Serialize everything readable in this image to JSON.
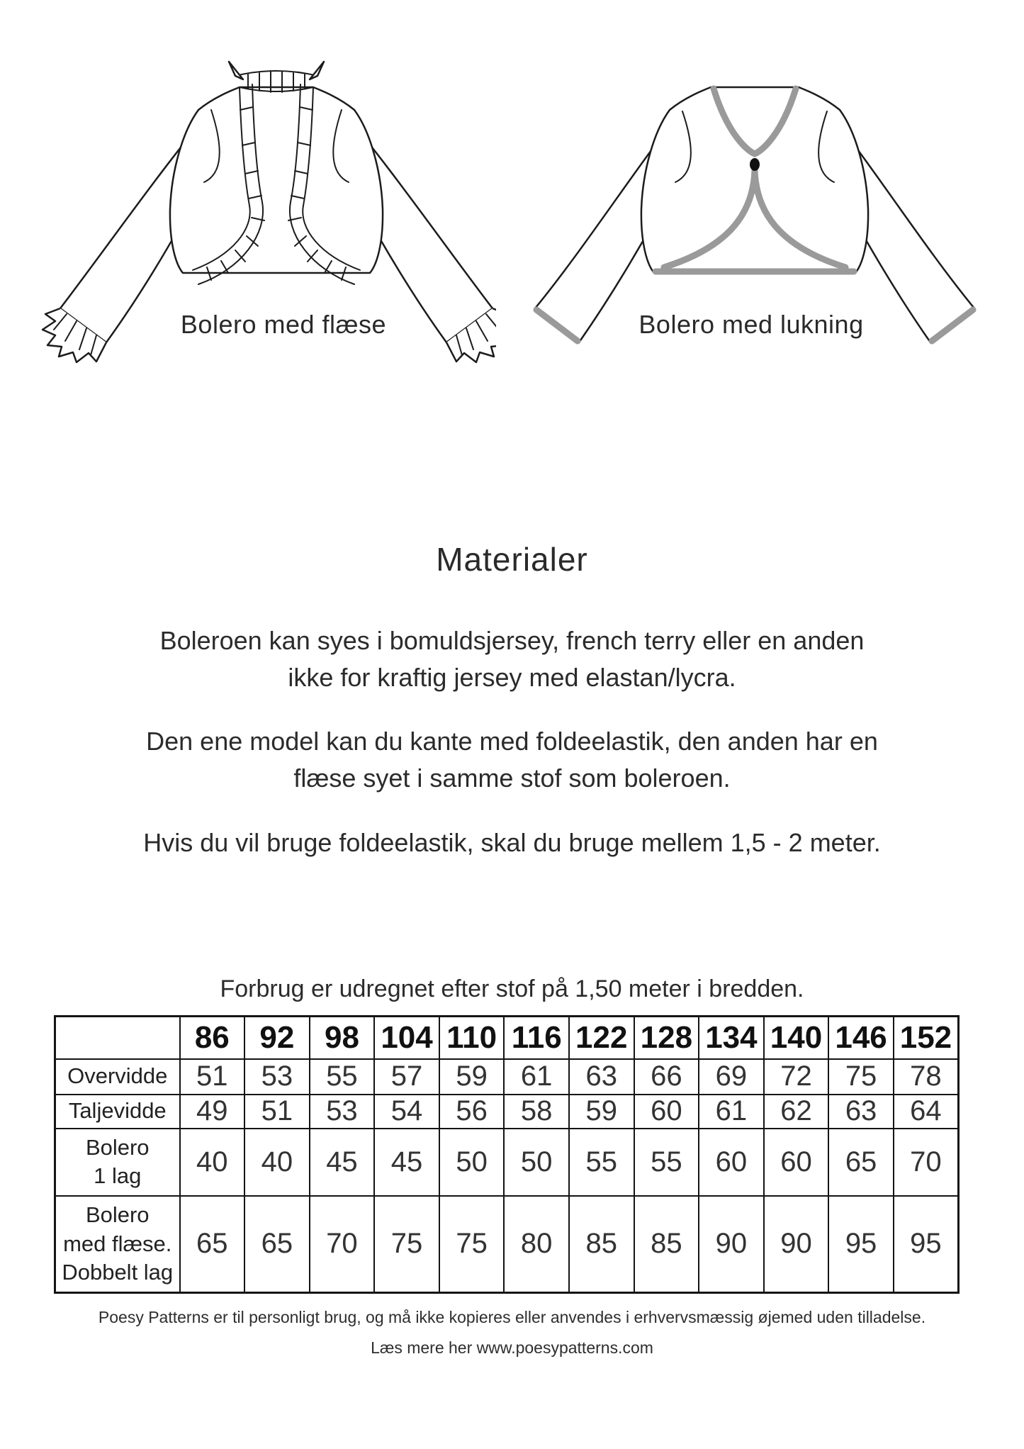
{
  "figures": {
    "left_label": "Bolero med flæse",
    "right_label": "Bolero med lukning"
  },
  "materials": {
    "heading": "Materialer",
    "paragraphs": [
      {
        "lines": [
          "Boleroen kan syes i bomuldsjersey, french terry eller en anden",
          "ikke for kraftig jersey med elastan/lycra."
        ]
      },
      {
        "lines": [
          "Den ene model kan du kante med foldeelastik, den anden har en",
          "flæse syet i samme stof som boleroen."
        ]
      },
      {
        "lines": [
          "Hvis du vil bruge foldeelastik, skal du bruge mellem 1,5 - 2 meter."
        ]
      }
    ]
  },
  "table": {
    "caption": "Forbrug er udregnet efter stof på 1,50 meter i bredden.",
    "sizes": [
      "86",
      "92",
      "98",
      "104",
      "110",
      "116",
      "122",
      "128",
      "134",
      "140",
      "146",
      "152"
    ],
    "rows": [
      {
        "label_lines": [
          "Overvidde"
        ],
        "values": [
          "51",
          "53",
          "55",
          "57",
          "59",
          "61",
          "63",
          "66",
          "69",
          "72",
          "75",
          "78"
        ]
      },
      {
        "label_lines": [
          "Taljevidde"
        ],
        "values": [
          "49",
          "51",
          "53",
          "54",
          "56",
          "58",
          "59",
          "60",
          "61",
          "62",
          "63",
          "64"
        ]
      },
      {
        "label_lines": [
          "Bolero",
          "1 lag"
        ],
        "values": [
          "40",
          "40",
          "45",
          "45",
          "50",
          "50",
          "55",
          "55",
          "60",
          "60",
          "65",
          "70"
        ]
      },
      {
        "label_lines": [
          "Bolero",
          "med flæse.",
          "Dobbelt lag"
        ],
        "values": [
          "65",
          "65",
          "70",
          "75",
          "75",
          "80",
          "85",
          "85",
          "90",
          "90",
          "95",
          "95"
        ]
      }
    ]
  },
  "footer": {
    "line1": "Poesy Patterns er til personligt brug, og må ikke kopieres eller anvendes i erhvervsmæssig øjemed uden tilladelse.",
    "line2": "Læs mere her www.poesypatterns.com"
  },
  "colors": {
    "ink": "#1c1c1c",
    "edging_gray": "#9a9a9a",
    "table_border": "#141414"
  }
}
